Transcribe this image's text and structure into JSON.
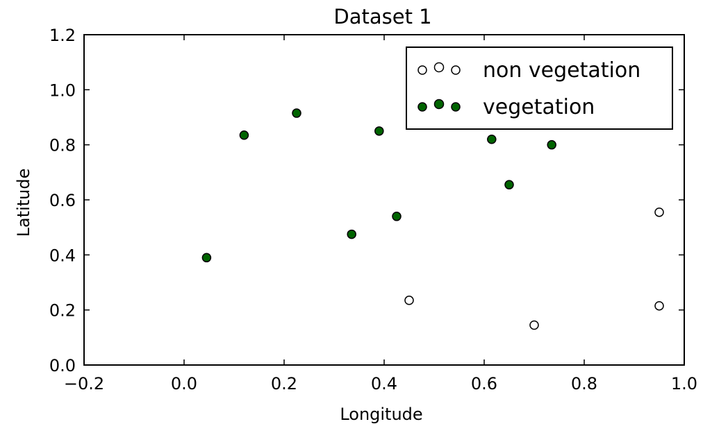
{
  "chart_data": {
    "type": "scatter",
    "title": "Dataset 1",
    "xlabel": "Longitude",
    "ylabel": "Latitude",
    "xlim": [
      -0.2,
      1.0
    ],
    "ylim": [
      0.0,
      1.2
    ],
    "x_ticks": [
      -0.2,
      0.0,
      0.2,
      0.4,
      0.6,
      0.8,
      1.0
    ],
    "x_tick_labels": [
      "−0.2",
      "0.0",
      "0.2",
      "0.4",
      "0.6",
      "0.8",
      "1.0"
    ],
    "y_ticks": [
      0.0,
      0.2,
      0.4,
      0.6,
      0.8,
      1.0,
      1.2
    ],
    "y_tick_labels": [
      "0.0",
      "0.2",
      "0.4",
      "0.6",
      "0.8",
      "1.0",
      "1.2"
    ],
    "grid": false,
    "legend_position": "top-right",
    "series": [
      {
        "name": "non vegetation",
        "fill": "#ffffff",
        "stroke": "#000000",
        "points": [
          {
            "x": 0.45,
            "y": 0.235
          },
          {
            "x": 0.7,
            "y": 0.145
          },
          {
            "x": 0.95,
            "y": 0.555
          },
          {
            "x": 0.95,
            "y": 0.215
          }
        ]
      },
      {
        "name": "vegetation",
        "fill": "#006400",
        "stroke": "#000000",
        "points": [
          {
            "x": 0.045,
            "y": 0.39
          },
          {
            "x": 0.12,
            "y": 0.835
          },
          {
            "x": 0.225,
            "y": 0.915
          },
          {
            "x": 0.335,
            "y": 0.475
          },
          {
            "x": 0.39,
            "y": 0.85
          },
          {
            "x": 0.425,
            "y": 0.54
          },
          {
            "x": 0.615,
            "y": 0.82
          },
          {
            "x": 0.65,
            "y": 0.655
          },
          {
            "x": 0.735,
            "y": 0.8
          }
        ]
      }
    ]
  }
}
